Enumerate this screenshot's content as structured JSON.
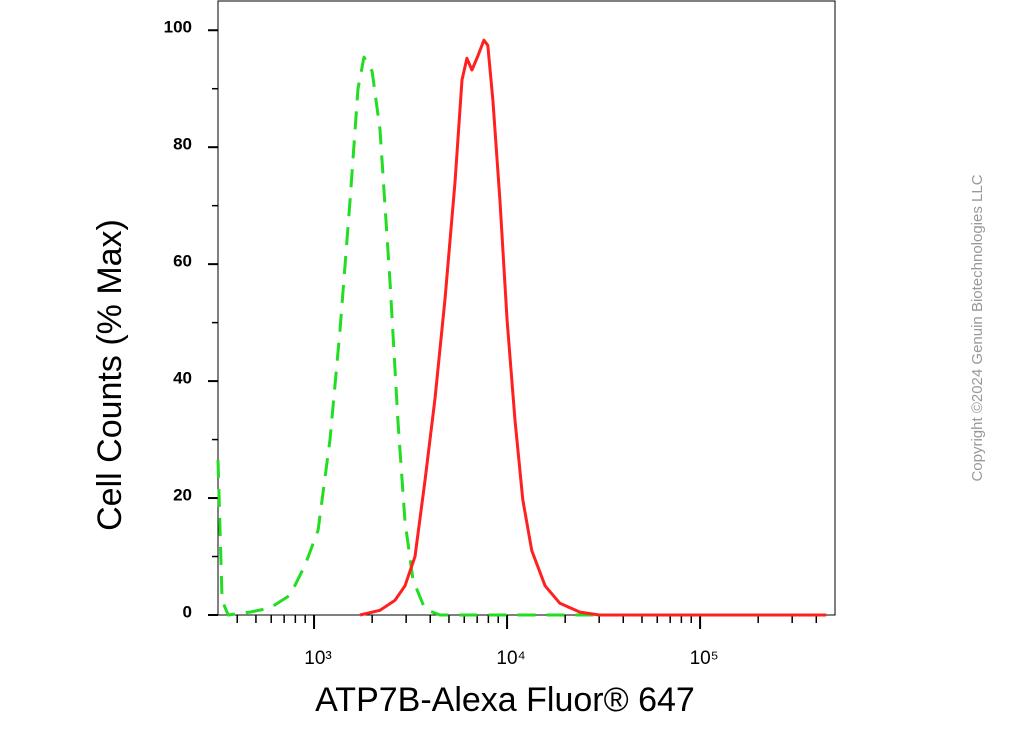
{
  "chart_data": {
    "type": "line",
    "y_label": "Cell Counts (% Max)",
    "x_label": "ATP7B-Alexa Fluor® 647",
    "x_scale": "log",
    "xlim": [
      318,
      500000
    ],
    "ylim": [
      0,
      105
    ],
    "yticks": [
      0,
      20,
      40,
      60,
      80,
      100
    ],
    "yminorticks": [
      10,
      30,
      50,
      70,
      90
    ],
    "xticks": [
      {
        "value": 1000,
        "label": "10³"
      },
      {
        "value": 10000,
        "label": "10⁴"
      },
      {
        "value": 100000,
        "label": "10⁵"
      }
    ],
    "xminorticks": [
      400,
      500,
      600,
      700,
      800,
      900,
      2000,
      3000,
      4000,
      5000,
      6000,
      7000,
      8000,
      9000,
      20000,
      30000,
      40000,
      50000,
      60000,
      70000,
      80000,
      90000,
      200000,
      300000,
      400000
    ],
    "series": [
      {
        "color": "#22dd22",
        "dashed": true,
        "x": [
          318,
          334,
          359,
          466,
          592,
          752,
          898,
          1049,
          1210,
          1363,
          1537,
          1690,
          1815,
          2000,
          2197,
          2474,
          2724,
          2960,
          3256,
          3757,
          4495,
          10000,
          100000,
          450000
        ],
        "values": [
          26.5,
          2.5,
          0,
          0.5,
          1.2,
          3.4,
          8.5,
          14.5,
          30,
          48.7,
          71,
          90,
          95.4,
          93,
          83,
          57,
          33,
          16,
          6,
          1,
          0,
          0,
          0,
          0
        ]
      },
      {
        "color": "#ff2020",
        "dashed": false,
        "x": [
          1730,
          2197,
          2625,
          2960,
          3334,
          3757,
          4234,
          4770,
          5376,
          5840,
          6193,
          6573,
          7080,
          7590,
          7950,
          8450,
          9180,
          10000,
          10990,
          12070,
          13440,
          15740,
          18780,
          23850,
          30100,
          100000,
          450000
        ],
        "values": [
          0,
          0.8,
          2.5,
          5,
          10,
          23,
          37,
          54,
          74,
          91.5,
          95.2,
          93.2,
          95.7,
          98.3,
          97.4,
          88,
          71,
          50.4,
          33.3,
          19.7,
          11,
          5,
          2,
          0.5,
          0,
          0,
          0
        ]
      }
    ]
  },
  "watermark": "Copyright ©2024 Genuin Biotechnologies LLC"
}
